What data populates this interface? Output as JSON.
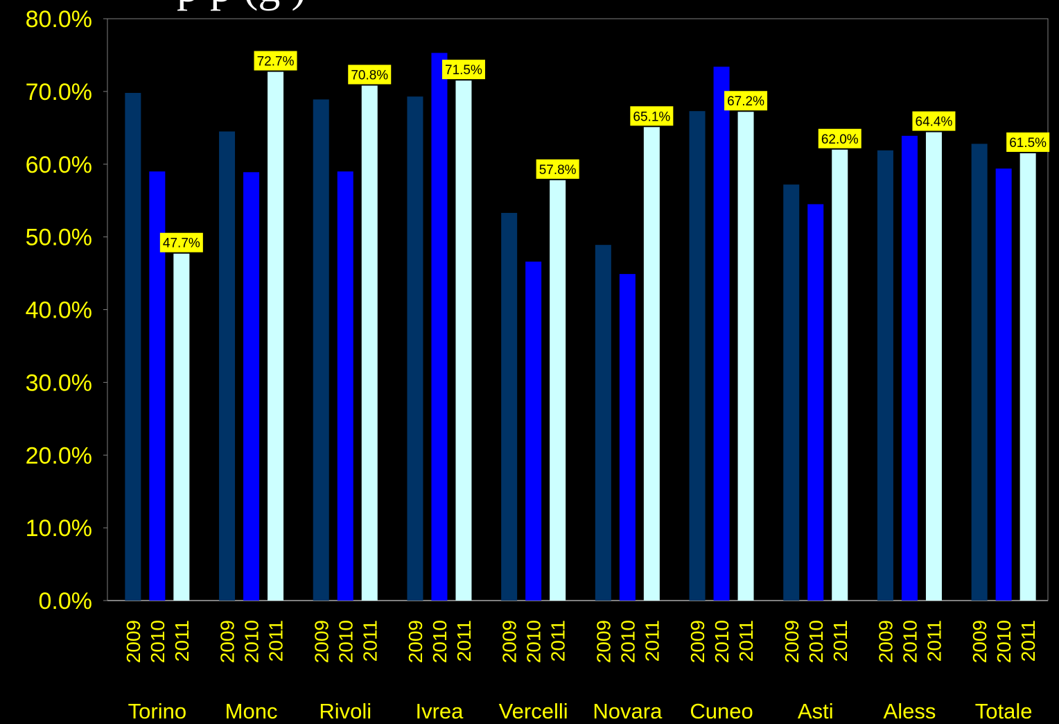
{
  "title_fragment": "p      p              (g                )",
  "chart_data": {
    "type": "bar",
    "categories": [
      "Torino",
      "Monc",
      "Rivoli",
      "Ivrea",
      "Vercelli",
      "Novara",
      "Cuneo",
      "Asti",
      "Aless",
      "Totale"
    ],
    "years": [
      "2009",
      "2010",
      "2011"
    ],
    "series": [
      {
        "values": [
          69.8,
          64.5,
          68.9,
          69.3,
          53.3,
          48.9,
          67.3,
          57.2,
          61.9,
          62.8
        ]
      },
      {
        "values": [
          59.0,
          58.9,
          59.0,
          75.3,
          46.6,
          44.9,
          73.4,
          54.5,
          63.9,
          59.4
        ]
      },
      {
        "values": [
          47.7,
          72.7,
          70.8,
          71.5,
          57.8,
          65.1,
          67.2,
          62.0,
          64.4,
          61.5
        ]
      }
    ],
    "data_labels": [
      "47.7%",
      "72.7%",
      "70.8%",
      "71.5%",
      "57.8%",
      "65.1%",
      "67.2%",
      "62.0%",
      "64.4%",
      "61.5%"
    ],
    "y_ticks": [
      "0.0%",
      "10.0%",
      "20.0%",
      "30.0%",
      "40.0%",
      "50.0%",
      "60.0%",
      "70.0%",
      "80.0%"
    ],
    "ylim": [
      0,
      80
    ],
    "grid": false,
    "colors": {
      "series": [
        "#003366",
        "#0000ff",
        "#ccffff"
      ],
      "text": "#ffff00",
      "label_box": "#ffff00",
      "background": "#000000",
      "axis": "#808080"
    }
  }
}
